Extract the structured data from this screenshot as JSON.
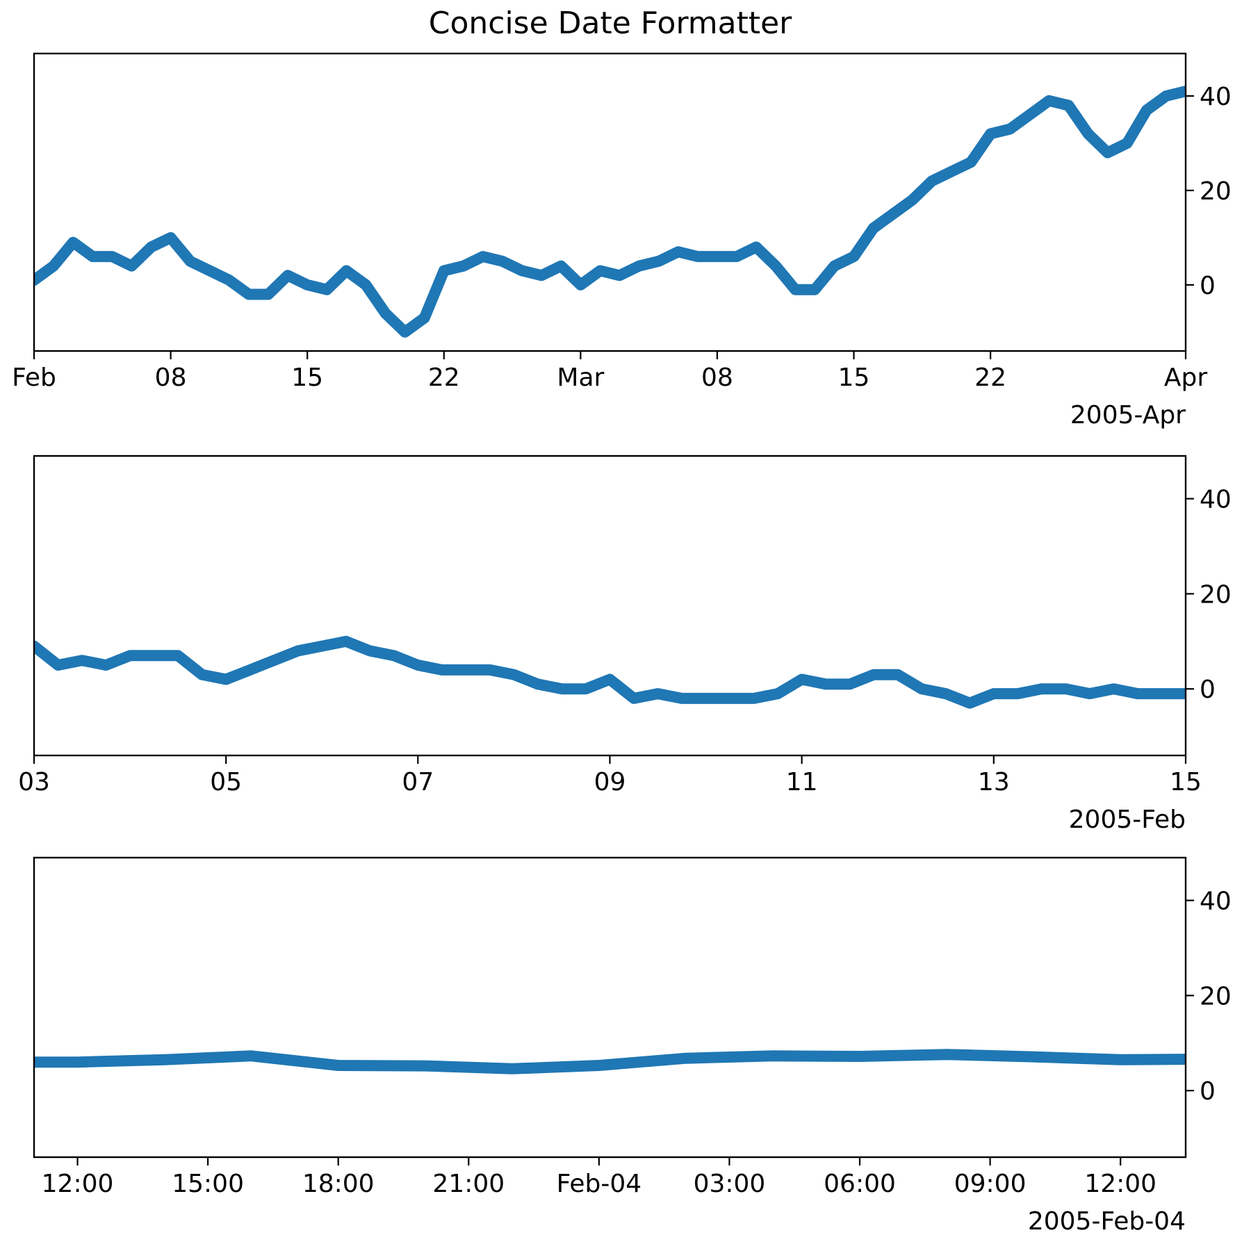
{
  "figure": {
    "title": "Concise Date Formatter"
  },
  "colors": {
    "line": "#1f77b4",
    "axes": "#000000",
    "background": "#ffffff"
  },
  "chart_data": [
    {
      "type": "line",
      "title": "",
      "xlabel": "",
      "ylabel": "",
      "ytick_side": "right",
      "grid": false,
      "ylim": [
        -14,
        49
      ],
      "yticks": [
        0,
        20,
        40
      ],
      "ytick_labels": [
        "0",
        "20",
        "40"
      ],
      "xlim": [
        "2005-02-01",
        "2005-04-01"
      ],
      "xticks": [
        "2005-02-01",
        "2005-02-08",
        "2005-02-15",
        "2005-02-22",
        "2005-03-01",
        "2005-03-08",
        "2005-03-15",
        "2005-03-22",
        "2005-04-01"
      ],
      "xtick_labels": [
        "Feb",
        "08",
        "15",
        "22",
        "Mar",
        "08",
        "15",
        "22",
        "Apr"
      ],
      "offset_label": "2005-Apr",
      "series": [
        {
          "x": [
            "2005-02-01",
            "2005-02-02",
            "2005-02-03",
            "2005-02-04",
            "2005-02-05",
            "2005-02-06",
            "2005-02-07",
            "2005-02-08",
            "2005-02-09",
            "2005-02-10",
            "2005-02-11",
            "2005-02-12",
            "2005-02-13",
            "2005-02-14",
            "2005-02-15",
            "2005-02-16",
            "2005-02-17",
            "2005-02-18",
            "2005-02-19",
            "2005-02-20",
            "2005-02-21",
            "2005-02-22",
            "2005-02-23",
            "2005-02-24",
            "2005-02-25",
            "2005-02-26",
            "2005-02-27",
            "2005-02-28",
            "2005-03-01",
            "2005-03-02",
            "2005-03-03",
            "2005-03-04",
            "2005-03-05",
            "2005-03-06",
            "2005-03-07",
            "2005-03-08",
            "2005-03-09",
            "2005-03-10",
            "2005-03-11",
            "2005-03-12",
            "2005-03-13",
            "2005-03-14",
            "2005-03-15",
            "2005-03-16",
            "2005-03-17",
            "2005-03-18",
            "2005-03-19",
            "2005-03-20",
            "2005-03-21",
            "2005-03-22",
            "2005-03-23",
            "2005-03-24",
            "2005-03-25",
            "2005-03-26",
            "2005-03-27",
            "2005-03-28",
            "2005-03-29",
            "2005-03-30",
            "2005-03-31",
            "2005-04-01"
          ],
          "y": [
            1,
            4,
            9,
            6,
            6,
            4,
            8,
            10,
            5,
            3,
            1,
            -2,
            -2,
            2,
            0,
            -1,
            3,
            0,
            -6,
            -10,
            -7,
            3,
            4,
            6,
            5,
            3,
            2,
            4,
            0,
            3,
            2,
            4,
            5,
            7,
            6,
            6,
            6,
            8,
            4,
            -1,
            -1,
            4,
            6,
            12,
            15,
            18,
            22,
            24,
            26,
            32,
            33,
            36,
            39,
            38,
            32,
            28,
            30,
            37,
            40,
            41
          ]
        }
      ]
    },
    {
      "type": "line",
      "title": "",
      "xlabel": "",
      "ylabel": "",
      "ytick_side": "right",
      "grid": false,
      "ylim": [
        -14,
        49
      ],
      "yticks": [
        0,
        20,
        40
      ],
      "ytick_labels": [
        "0",
        "20",
        "40"
      ],
      "xlim": [
        "2005-02-03",
        "2005-02-15"
      ],
      "xticks": [
        "2005-02-03",
        "2005-02-05",
        "2005-02-07",
        "2005-02-09",
        "2005-02-11",
        "2005-02-13",
        "2005-02-15"
      ],
      "xtick_labels": [
        "03",
        "05",
        "07",
        "09",
        "11",
        "13",
        "15"
      ],
      "offset_label": "2005-Feb",
      "series": [
        {
          "x": [
            "2005-02-03T00:00",
            "2005-02-03T06:00",
            "2005-02-03T12:00",
            "2005-02-03T18:00",
            "2005-02-04T00:00",
            "2005-02-04T06:00",
            "2005-02-04T12:00",
            "2005-02-04T18:00",
            "2005-02-05T00:00",
            "2005-02-05T06:00",
            "2005-02-05T12:00",
            "2005-02-05T18:00",
            "2005-02-06T00:00",
            "2005-02-06T06:00",
            "2005-02-06T12:00",
            "2005-02-06T18:00",
            "2005-02-07T00:00",
            "2005-02-07T06:00",
            "2005-02-07T12:00",
            "2005-02-07T18:00",
            "2005-02-08T00:00",
            "2005-02-08T06:00",
            "2005-02-08T12:00",
            "2005-02-08T18:00",
            "2005-02-09T00:00",
            "2005-02-09T06:00",
            "2005-02-09T12:00",
            "2005-02-09T18:00",
            "2005-02-10T00:00",
            "2005-02-10T06:00",
            "2005-02-10T12:00",
            "2005-02-10T18:00",
            "2005-02-11T00:00",
            "2005-02-11T06:00",
            "2005-02-11T12:00",
            "2005-02-11T18:00",
            "2005-02-12T00:00",
            "2005-02-12T06:00",
            "2005-02-12T12:00",
            "2005-02-12T18:00",
            "2005-02-13T00:00",
            "2005-02-13T06:00",
            "2005-02-13T12:00",
            "2005-02-13T18:00",
            "2005-02-14T00:00",
            "2005-02-14T06:00",
            "2005-02-14T12:00",
            "2005-02-14T18:00",
            "2005-02-15T00:00"
          ],
          "y": [
            9,
            5,
            6,
            5,
            7,
            7,
            7,
            3,
            2,
            4,
            6,
            8,
            9,
            10,
            8,
            7,
            5,
            4,
            4,
            4,
            3,
            1,
            0,
            0,
            2,
            -2,
            -1,
            -2,
            -2,
            -2,
            -2,
            -1,
            2,
            1,
            1,
            3,
            3,
            0,
            -1,
            -3,
            -1,
            -1,
            0,
            0,
            -1,
            0,
            -1,
            -1,
            -1
          ]
        }
      ]
    },
    {
      "type": "line",
      "title": "",
      "xlabel": "",
      "ylabel": "",
      "ytick_side": "right",
      "grid": false,
      "ylim": [
        -14,
        49
      ],
      "yticks": [
        0,
        20,
        40
      ],
      "ytick_labels": [
        "0",
        "20",
        "40"
      ],
      "xlim": [
        "2005-02-03T11:00",
        "2005-02-04T13:30"
      ],
      "xticks": [
        "2005-02-03T12:00",
        "2005-02-03T15:00",
        "2005-02-03T18:00",
        "2005-02-03T21:00",
        "2005-02-04T00:00",
        "2005-02-04T03:00",
        "2005-02-04T06:00",
        "2005-02-04T09:00",
        "2005-02-04T12:00"
      ],
      "xtick_labels": [
        "12:00",
        "15:00",
        "18:00",
        "21:00",
        "Feb-04",
        "03:00",
        "06:00",
        "09:00",
        "12:00"
      ],
      "offset_label": "2005-Feb-04",
      "series": [
        {
          "x": [
            "2005-02-03T11:00",
            "2005-02-03T12:00",
            "2005-02-03T14:00",
            "2005-02-03T16:00",
            "2005-02-03T18:00",
            "2005-02-03T20:00",
            "2005-02-03T22:00",
            "2005-02-04T00:00",
            "2005-02-04T02:00",
            "2005-02-04T04:00",
            "2005-02-04T06:00",
            "2005-02-04T08:00",
            "2005-02-04T10:00",
            "2005-02-04T12:00",
            "2005-02-04T13:30"
          ],
          "y": [
            6,
            6,
            6.5,
            7.3,
            5.3,
            5.2,
            4.6,
            5.3,
            6.8,
            7.3,
            7.2,
            7.6,
            7.1,
            6.5,
            6.6
          ]
        }
      ]
    }
  ]
}
